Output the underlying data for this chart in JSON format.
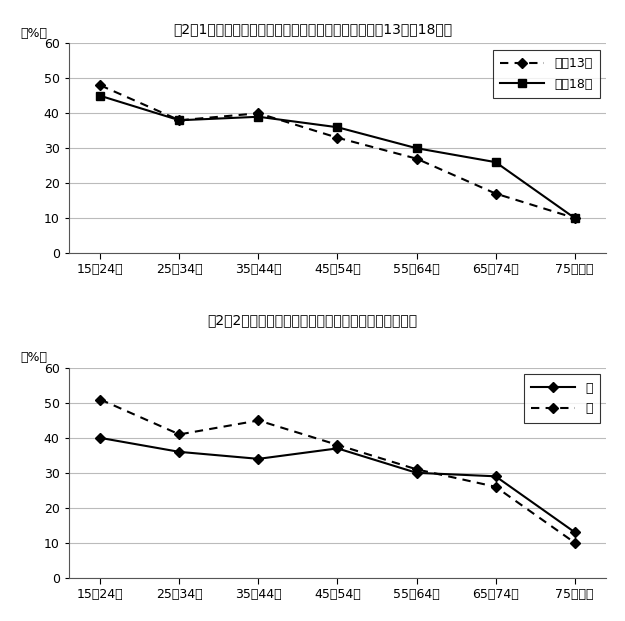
{
  "title1": "図2－1　年齢階級別「学習・研究」の行動者率（平成13年，18年）",
  "title2": "図2－2　男女，年齢階級別「学習・研究」の行動者率",
  "ylabel": "（%）",
  "categories": [
    "15－24歳",
    "25－34歳",
    "35－44歳",
    "45－54歳",
    "55－64歳",
    "65－74歳",
    "75歳以上"
  ],
  "chart1_series": [
    {
      "label": "平成13年",
      "values": [
        48,
        38,
        40,
        33,
        27,
        17,
        10
      ],
      "linestyle": "dotted",
      "marker": "D",
      "marker2": "s"
    },
    {
      "label": "平成18年",
      "values": [
        45,
        38,
        39,
        36,
        30,
        26,
        10
      ],
      "linestyle": "solid",
      "marker": "s",
      "marker2": "s"
    }
  ],
  "chart2_series": [
    {
      "label": "男",
      "values": [
        40,
        36,
        34,
        37,
        30,
        29,
        13
      ],
      "linestyle": "solid",
      "marker": "D"
    },
    {
      "label": "女",
      "values": [
        51,
        41,
        45,
        38,
        31,
        26,
        10
      ],
      "linestyle": "dotted",
      "marker": "D"
    }
  ],
  "ylim": [
    0,
    60
  ],
  "yticks": [
    0,
    10,
    20,
    30,
    40,
    50,
    60
  ],
  "bg_color": "#ffffff",
  "grid_color": "#bbbbbb"
}
